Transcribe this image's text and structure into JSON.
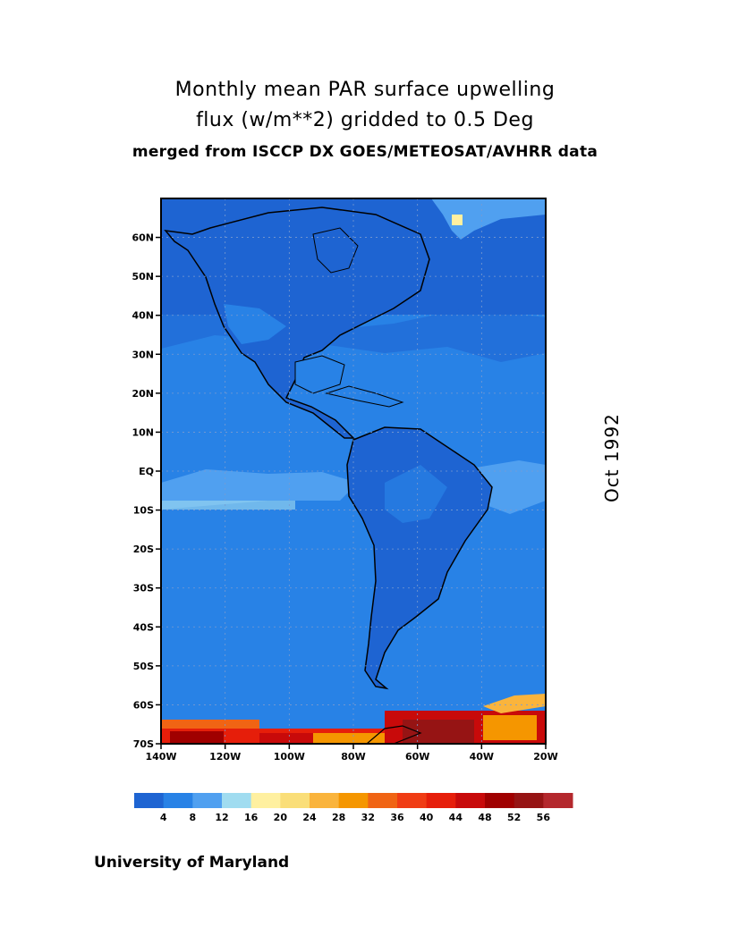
{
  "title": {
    "line1": "Monthly mean PAR surface upwelling",
    "line2": "flux (w/m**2) gridded to 0.5 Deg",
    "line3": "merged from ISCCP DX GOES/METEOSAT/AVHRR data"
  },
  "date_label": "Oct 1992",
  "credit": "University of Maryland",
  "map": {
    "lat_ticks": [
      "60N",
      "50N",
      "40N",
      "30N",
      "20N",
      "10N",
      "EQ",
      "10S",
      "20S",
      "30S",
      "40S",
      "50S",
      "60S",
      "70S"
    ],
    "lon_ticks": [
      "140W",
      "120W",
      "100W",
      "80W",
      "60W",
      "40W",
      "20W"
    ],
    "lat_range": [
      -70,
      70
    ],
    "lon_range": [
      -140,
      -20
    ]
  },
  "colorbar": {
    "colors": [
      "#1e64d2",
      "#2882e6",
      "#50a0f0",
      "#a0dcf0",
      "#fff0a0",
      "#fade78",
      "#fab43c",
      "#f59600",
      "#f06414",
      "#f03c14",
      "#e61e0a",
      "#c80a0a",
      "#a00000",
      "#961414",
      "#b4282d"
    ],
    "labels": [
      "4",
      "8",
      "12",
      "16",
      "20",
      "24",
      "28",
      "32",
      "36",
      "40",
      "44",
      "48",
      "52",
      "56"
    ]
  },
  "colors": {
    "ocean_base": "#2882e6",
    "land_dark": "#1e64d2",
    "antarctic_warm": "#f06414"
  }
}
